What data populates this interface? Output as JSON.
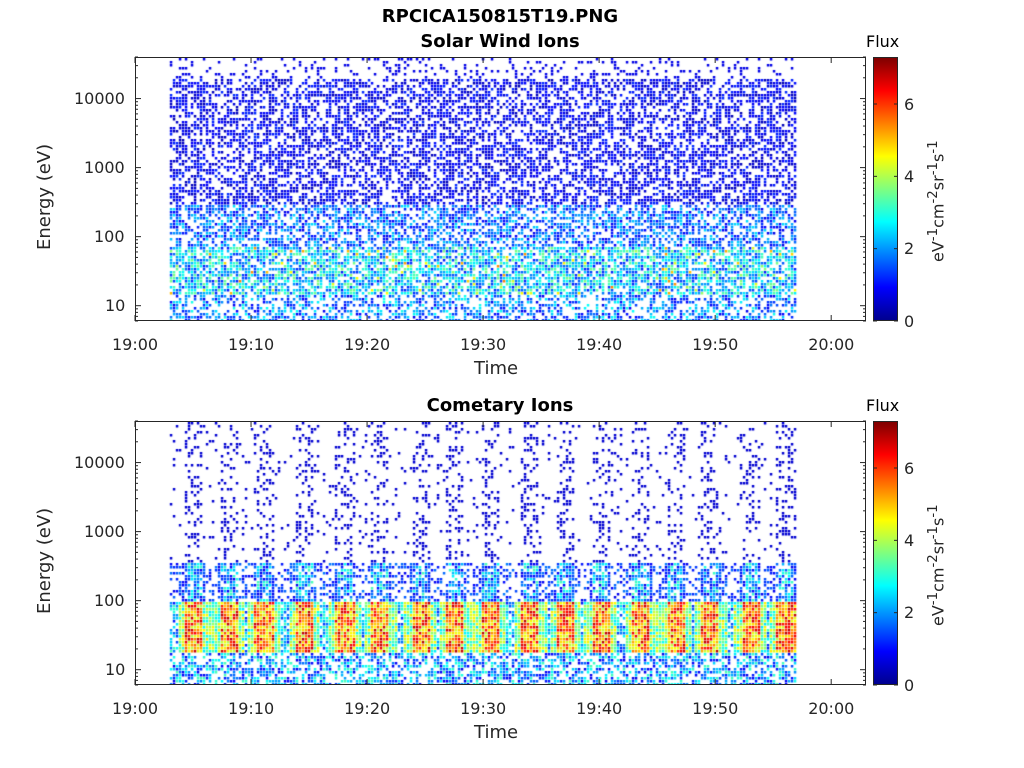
{
  "figure": {
    "title": "RPCICA150815T19.PNG"
  },
  "chart_data": [
    {
      "type": "heatmap",
      "title": "Solar Wind Ions",
      "xlabel": "Time",
      "ylabel": "Energy (eV)",
      "x_ticks": [
        "19:00",
        "19:10",
        "19:20",
        "19:30",
        "19:40",
        "19:50",
        "20:00"
      ],
      "x_range": [
        "19:00",
        "20:03"
      ],
      "data_time_range": [
        "19:03",
        "19:57"
      ],
      "y_scale": "log",
      "y_ticks": [
        "10",
        "100",
        "1000",
        "10000"
      ],
      "y_range": [
        6,
        40000
      ],
      "colorbar": {
        "title": "Flux",
        "label": "eV-1cm-2sr-1s-1",
        "ticks": [
          "0",
          "2",
          "4",
          "6"
        ],
        "range": [
          0,
          7.3
        ],
        "colormap": "jet"
      },
      "features": "Sparse low-flux (dark blue) speckle across 20 eV–40 keV; moderate flux (cyan/green) concentrated below 100 eV with occasional yellow patches near 20–40 eV."
    },
    {
      "type": "heatmap",
      "title": "Cometary Ions",
      "xlabel": "Time",
      "ylabel": "Energy (eV)",
      "x_ticks": [
        "19:00",
        "19:10",
        "19:20",
        "19:30",
        "19:40",
        "19:50",
        "20:00"
      ],
      "x_range": [
        "19:00",
        "20:03"
      ],
      "data_time_range": [
        "19:03",
        "19:57"
      ],
      "y_scale": "log",
      "y_ticks": [
        "10",
        "100",
        "1000",
        "10000"
      ],
      "y_range": [
        6,
        40000
      ],
      "colorbar": {
        "title": "Flux",
        "label": "eV-1cm-2sr-1s-1",
        "ticks": [
          "0",
          "2",
          "4",
          "6"
        ],
        "range": [
          0,
          7.3
        ],
        "colormap": "jet"
      },
      "burst_peak_times_min": [
        5,
        8,
        11,
        14.5,
        18,
        21,
        24.5,
        27.5,
        30.5,
        34,
        37,
        40,
        43.5,
        46.5,
        49.5,
        53,
        56
      ],
      "features": "Periodic ~3.3 minute bursts with high flux (red, ~6–7) near 20–50 eV, each with a yellow/green dispersive arm rising toward ~300 eV; sparse blue counts extend up to ~10 keV."
    }
  ]
}
